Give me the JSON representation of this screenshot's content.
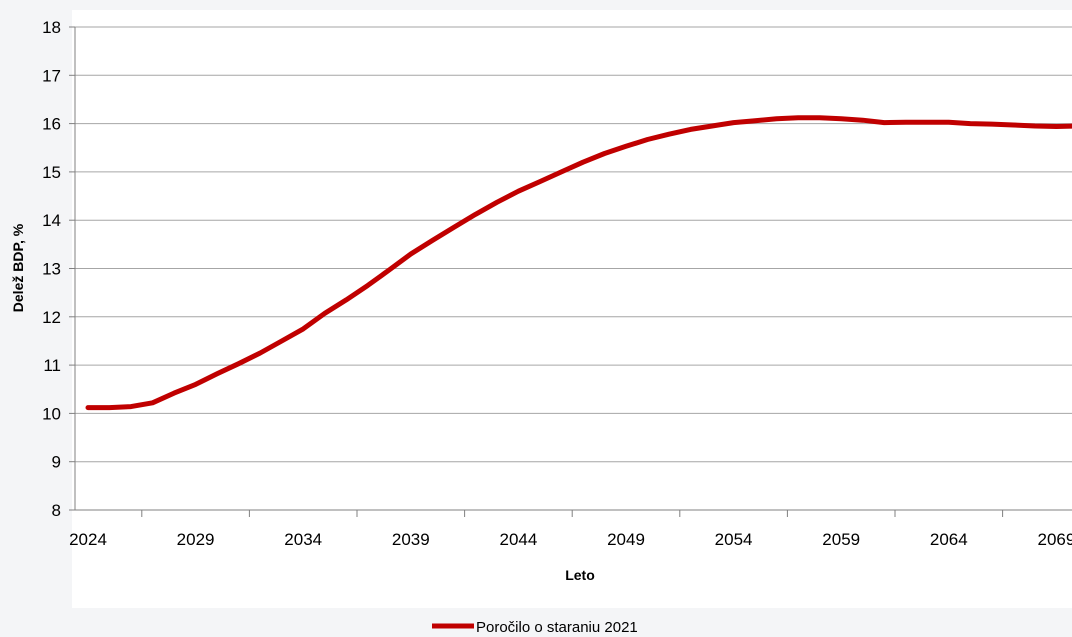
{
  "chart_data": {
    "type": "line",
    "xlabel": "Leto",
    "ylabel": "Delež BDP, %",
    "ylim": [
      8,
      18
    ],
    "yticks": [
      8,
      9,
      10,
      11,
      12,
      13,
      14,
      15,
      16,
      17,
      18
    ],
    "xlim": [
      2024,
      2070
    ],
    "xticks": [
      2024,
      2029,
      2034,
      2039,
      2044,
      2049,
      2054,
      2059,
      2064,
      2069
    ],
    "grid": "horizontal",
    "legend_position": "bottom",
    "series": [
      {
        "name": "Poročilo o staranju 2021",
        "color": "#c00000",
        "x": [
          2024,
          2025,
          2026,
          2027,
          2028,
          2029,
          2030,
          2031,
          2032,
          2033,
          2034,
          2035,
          2036,
          2037,
          2038,
          2039,
          2040,
          2041,
          2042,
          2043,
          2044,
          2045,
          2046,
          2047,
          2048,
          2049,
          2050,
          2051,
          2052,
          2053,
          2054,
          2055,
          2056,
          2057,
          2058,
          2059,
          2060,
          2061,
          2062,
          2063,
          2064,
          2065,
          2066,
          2067,
          2068,
          2069,
          2070
        ],
        "values": [
          10.12,
          10.12,
          10.14,
          10.22,
          10.42,
          10.6,
          10.82,
          11.03,
          11.25,
          11.5,
          11.75,
          12.07,
          12.35,
          12.65,
          12.97,
          13.3,
          13.58,
          13.85,
          14.12,
          14.37,
          14.6,
          14.8,
          15.0,
          15.2,
          15.38,
          15.53,
          15.67,
          15.78,
          15.88,
          15.95,
          16.02,
          16.06,
          16.1,
          16.12,
          16.12,
          16.1,
          16.07,
          16.02,
          16.03,
          16.03,
          16.03,
          16.0,
          15.99,
          15.97,
          15.95,
          15.94,
          15.95
        ]
      }
    ]
  }
}
